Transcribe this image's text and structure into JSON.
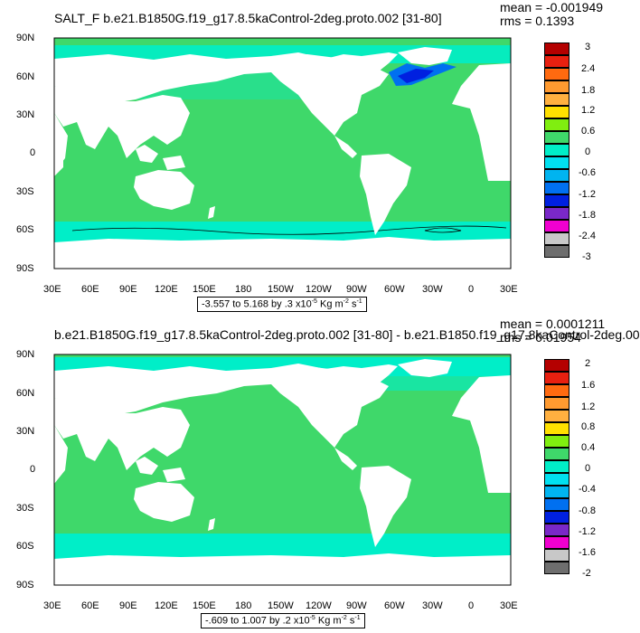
{
  "panels": [
    {
      "title": "SALT_F b.e21.B1850G.f19_g17.8.5kaControl-2deg.proto.002 [31-80]",
      "stats": {
        "mean": "mean = -0.001949",
        "rms": "rms = 0.1393"
      },
      "range": {
        "text": "-3.557 to 5.168 by .3 x10",
        "exp": "-5",
        "unit": " Kg m",
        "unit_exp1": "-2",
        "unit_tail": " s",
        "unit_exp2": "-1"
      },
      "colorbar_labels": [
        "3",
        "2.4",
        "1.8",
        "1.2",
        "0.6",
        "0",
        "-0.6",
        "-1.2",
        "-1.8",
        "-2.4",
        "-3"
      ]
    },
    {
      "title": "b.e21.B1850G.f19_g17.8.5kaControl-2deg.proto.002 [31-80] - b.e21.B1850.f19_g17.8kaControl-2deg.00",
      "stats": {
        "mean": "mean = 0.0001211",
        "rms": "rms = 0.01954"
      },
      "range": {
        "text": "-.609 to 1.007 by .2 x10",
        "exp": "-5",
        "unit": " Kg m",
        "unit_exp1": "-2",
        "unit_tail": " s",
        "unit_exp2": "-1"
      },
      "colorbar_labels": [
        "2",
        "1.6",
        "1.2",
        "0.8",
        "0.4",
        "0",
        "-0.4",
        "-0.8",
        "-1.2",
        "-1.6",
        "-2"
      ]
    }
  ],
  "axes": {
    "lat_labels": [
      "90N",
      "60N",
      "30N",
      "0",
      "30S",
      "60S",
      "90S"
    ],
    "lon_labels": [
      "30E",
      "60E",
      "90E",
      "120E",
      "150E",
      "180",
      "150W",
      "120W",
      "90W",
      "60W",
      "30W",
      "0",
      "30E"
    ]
  },
  "colors": {
    "ocean": "#3fd86a",
    "ocean_light": "#00eec8",
    "land": "#ffffff",
    "colorbar": [
      "#b40000",
      "#e82010",
      "#ff6a10",
      "#ff9a30",
      "#ffb040",
      "#ffe000",
      "#80ee10",
      "#3fd86a",
      "#00eec8",
      "#00e0f0",
      "#00b4f0",
      "#0070f0",
      "#0020e0",
      "#7a28c8",
      "#f000d0",
      "#c8c8c8",
      "#6e6e6e"
    ]
  }
}
